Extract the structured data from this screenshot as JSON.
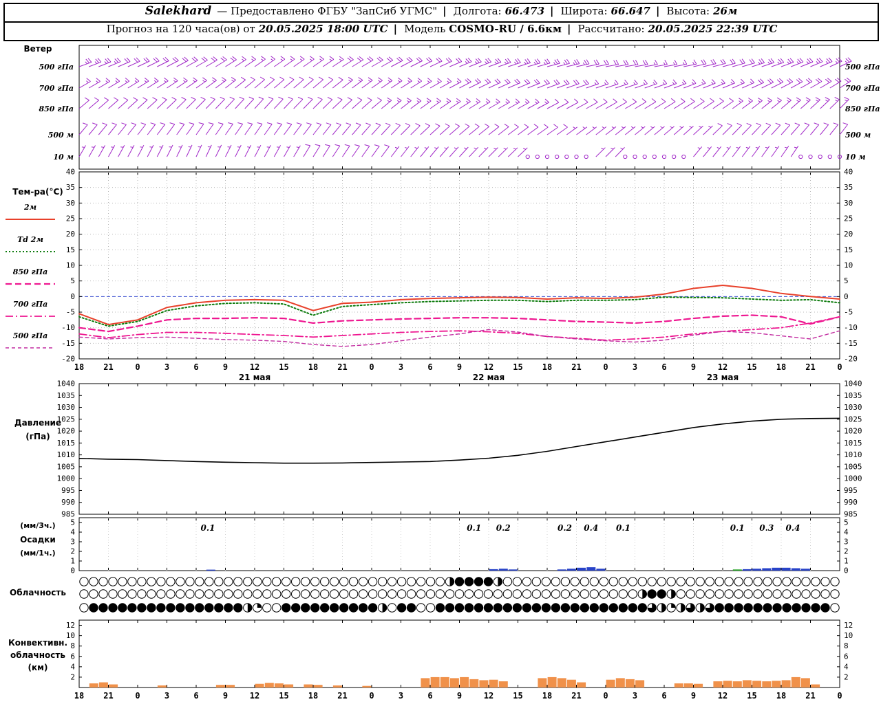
{
  "header": {
    "station": "Salekhard",
    "provider": "— Предоставлено ФГБУ \"ЗапСиб УГМС\"",
    "sep": "|",
    "lon_label": "Долгота:",
    "lon_value": "66.473",
    "lat_label": "Широта:",
    "lat_value": "66.647",
    "alt_label": "Высота:",
    "alt_value": "26м",
    "forecast_label": "Прогноз на 120 часа(ов) от",
    "forecast_time": "20.05.2025 18:00 UTC",
    "model_label": "Модель",
    "model_value": "COSMO-RU / 6.6км",
    "calc_label": "Рассчитано:",
    "calc_time": "20.05.2025 22:39 UTC"
  },
  "labels": {
    "wind_title": "Ветер",
    "temp_title": "Тем-ра(°C)",
    "pressure_title": "Давление",
    "pressure_unit": "(гПа)",
    "precip_unit_3h": "(мм/3ч.)",
    "precip_title": "Осадки",
    "precip_unit_1h": "(мм/1ч.)",
    "cloud_title": "Облачность",
    "conv_title_1": "Конвективн.",
    "conv_title_2": "облачность",
    "conv_title_3": "(км)"
  },
  "axis": {
    "hour_ticks": [
      "18",
      "21",
      "0",
      "3",
      "6",
      "9",
      "12",
      "15",
      "18",
      "21",
      "0",
      "3",
      "6",
      "9",
      "12",
      "15",
      "18",
      "21",
      "0",
      "3",
      "6",
      "9",
      "12",
      "15",
      "18",
      "21",
      "0"
    ],
    "date_labels": [
      {
        "label": "21 мая",
        "t": 6
      },
      {
        "label": "22 мая",
        "t": 14
      },
      {
        "label": "23 мая",
        "t": 22
      }
    ]
  },
  "chart_data": [
    {
      "type": "wind-barbs",
      "title": "Ветер",
      "color": "#a128c8",
      "levels": [
        "500 гПа",
        "700 гПа",
        "850 гПа",
        "500 м",
        "10 м"
      ],
      "keyframe_hours": [
        0,
        6,
        12,
        18,
        24,
        30,
        36,
        42,
        48,
        54,
        60,
        66,
        72,
        78
      ],
      "series": [
        {
          "level": "500 гПа",
          "dir": [
            70,
            65,
            60,
            55,
            55,
            60,
            65,
            70,
            75,
            80,
            80,
            75,
            70,
            65
          ],
          "spd": [
            25,
            20,
            20,
            15,
            15,
            20,
            20,
            25,
            25,
            20,
            15,
            20,
            25,
            25
          ]
        },
        {
          "level": "700 гПа",
          "dir": [
            60,
            58,
            55,
            50,
            50,
            55,
            60,
            65,
            70,
            72,
            70,
            68,
            62,
            58
          ],
          "spd": [
            15,
            15,
            15,
            10,
            10,
            15,
            15,
            20,
            20,
            15,
            15,
            15,
            20,
            20
          ]
        },
        {
          "level": "850 гПа",
          "dir": [
            50,
            48,
            45,
            42,
            45,
            50,
            55,
            60,
            62,
            60,
            58,
            55,
            50,
            45
          ],
          "spd": [
            10,
            10,
            10,
            10,
            10,
            12,
            15,
            15,
            12,
            10,
            10,
            12,
            15,
            15
          ]
        },
        {
          "level": "500 м",
          "dir": [
            40,
            38,
            35,
            35,
            38,
            42,
            48,
            52,
            55,
            52,
            50,
            45,
            42,
            38
          ],
          "spd": [
            10,
            8,
            8,
            8,
            10,
            10,
            10,
            10,
            8,
            5,
            5,
            8,
            10,
            8
          ]
        },
        {
          "level": "10 м",
          "dir": [
            30,
            28,
            25,
            28,
            32,
            36,
            40,
            45,
            48,
            45,
            42,
            38,
            35,
            30
          ],
          "spd": [
            5,
            6,
            5,
            5,
            8,
            8,
            6,
            4,
            1,
            3,
            1,
            4,
            3,
            1
          ]
        }
      ]
    },
    {
      "type": "line",
      "title": "Тем-ра(°C)",
      "ylim": [
        -20,
        40
      ],
      "ytick_step": 5,
      "zero_line_color": "#3b4fd0",
      "series": [
        {
          "name": "2м",
          "color": "#e8402a",
          "style": "solid",
          "width": 2,
          "values": [
            -5.5,
            -9,
            -7.5,
            -3.5,
            -2,
            -1.2,
            -1,
            -1.2,
            -4.5,
            -2.2,
            -1.8,
            -1,
            -0.6,
            -0.4,
            -0.2,
            -0.3,
            -0.8,
            -0.4,
            -0.6,
            -0.2,
            0.8,
            2.6,
            3.6,
            2.6,
            1,
            0,
            -0.8
          ]
        },
        {
          "name": "Td 2м",
          "color": "#0b7a0b",
          "style": "dotted",
          "width": 2,
          "values": [
            -6.5,
            -9.5,
            -8,
            -4.5,
            -3,
            -2.2,
            -2,
            -2.4,
            -6,
            -3.2,
            -2.6,
            -2,
            -1.6,
            -1.4,
            -1.2,
            -1.2,
            -1.6,
            -1.2,
            -1.2,
            -1,
            -0.2,
            -0.3,
            -0.4,
            -0.8,
            -1.2,
            -1,
            -2
          ]
        },
        {
          "name": "850 гПа",
          "color": "#ee1690",
          "style": "dashed",
          "width": 2.2,
          "values": [
            -10,
            -11.2,
            -9.5,
            -7.5,
            -7,
            -7,
            -6.8,
            -7,
            -8.5,
            -7.8,
            -7.5,
            -7.2,
            -7,
            -6.8,
            -6.8,
            -7,
            -7.5,
            -8,
            -8.2,
            -8.5,
            -8,
            -7,
            -6.3,
            -6,
            -6.5,
            -8.8,
            -6.5
          ]
        },
        {
          "name": "700 гПа",
          "color": "#ee1690",
          "style": "dashdot",
          "width": 1.8,
          "values": [
            -12,
            -13.2,
            -12.2,
            -11.5,
            -11.5,
            -11.8,
            -12.2,
            -12.5,
            -13,
            -12.5,
            -12,
            -11.5,
            -11.2,
            -11,
            -11.3,
            -11.8,
            -12.8,
            -13.4,
            -14,
            -13.6,
            -13,
            -12,
            -11.2,
            -10.6,
            -10,
            -8.5,
            -6.5
          ]
        },
        {
          "name": "500 гПа",
          "color": "#c22ba0",
          "style": "dashed-thin",
          "width": 1.4,
          "values": [
            -13,
            -13.6,
            -13.2,
            -13,
            -13.4,
            -13.8,
            -14,
            -14.4,
            -15.4,
            -16,
            -15.4,
            -14.2,
            -13,
            -12,
            -10.6,
            -11.4,
            -12.8,
            -13.6,
            -14.2,
            -14.6,
            -14,
            -12.4,
            -11.2,
            -11.6,
            -12.6,
            -13.6,
            -11
          ]
        }
      ]
    },
    {
      "type": "line",
      "title": "Давление (гПа)",
      "ylim": [
        985,
        1040
      ],
      "ytick_step": 5,
      "series": [
        {
          "name": "Давление",
          "color": "#000000",
          "style": "solid",
          "width": 1.6,
          "values": [
            1008.5,
            1008.2,
            1008,
            1007.6,
            1007.2,
            1006.9,
            1006.7,
            1006.5,
            1006.5,
            1006.6,
            1006.8,
            1007,
            1007.2,
            1007.8,
            1008.6,
            1009.8,
            1011.5,
            1013.5,
            1015.5,
            1017.5,
            1019.5,
            1021.5,
            1023,
            1024.2,
            1025,
            1025.3,
            1025.4
          ]
        }
      ]
    },
    {
      "type": "bar",
      "title": "Осадки (мм/3ч., мм/1ч.)",
      "ylim": [
        0,
        5.5
      ],
      "yticks": [
        0,
        1,
        2,
        3,
        4,
        5
      ],
      "colors": {
        "b": "#2843c8",
        "g": "#27a427"
      },
      "bars": [
        [
          13,
          0.1,
          "b"
        ],
        [
          42,
          0.15,
          "b"
        ],
        [
          43,
          0.2,
          "b"
        ],
        [
          44,
          0.12,
          "b"
        ],
        [
          49,
          0.12,
          "b"
        ],
        [
          50,
          0.2,
          "b"
        ],
        [
          51,
          0.3,
          "b"
        ],
        [
          52,
          0.35,
          "b"
        ],
        [
          53,
          0.2,
          "b"
        ],
        [
          67,
          0.12,
          "g"
        ],
        [
          68,
          0.15,
          "b"
        ],
        [
          69,
          0.2,
          "b"
        ],
        [
          70,
          0.25,
          "b"
        ],
        [
          71,
          0.3,
          "b"
        ],
        [
          72,
          0.3,
          "b"
        ],
        [
          73,
          0.25,
          "b"
        ],
        [
          74,
          0.2,
          "b"
        ]
      ],
      "annotations": [
        [
          4.4,
          "0.1"
        ],
        [
          13.5,
          "0.1"
        ],
        [
          14.5,
          "0.2"
        ],
        [
          16.6,
          "0.2"
        ],
        [
          17.5,
          "0.4"
        ],
        [
          18.6,
          "0.1"
        ],
        [
          22.5,
          "0.1"
        ],
        [
          23.5,
          "0.3"
        ],
        [
          24.4,
          "0.4"
        ]
      ]
    },
    {
      "type": "cloud-symbols",
      "title": "Облачность",
      "fill_scale": "quarters 0-4",
      "fills": [
        "00000000000000000000000000000000000000244442000000000000000000000000000000000000000",
        "00000000000000000000000000000000000000000000000000000000002442000000000000000000",
        "0444444444444444421004444444444204400444444444444444444444432123234444444444440"
      ]
    },
    {
      "type": "bar",
      "title": "Конвективная облачность (км)",
      "ylim": [
        0,
        13
      ],
      "yticks": [
        2,
        4,
        6,
        8,
        10,
        12
      ],
      "color": "#f0914a",
      "bars": [
        [
          1,
          0.8
        ],
        [
          2,
          1
        ],
        [
          3,
          0.6
        ],
        [
          8,
          0.4
        ],
        [
          14,
          0.5
        ],
        [
          15,
          0.5
        ],
        [
          18,
          0.7
        ],
        [
          19,
          0.9
        ],
        [
          20,
          0.8
        ],
        [
          21,
          0.6
        ],
        [
          23,
          0.6
        ],
        [
          24,
          0.5
        ],
        [
          26,
          0.4
        ],
        [
          29,
          0.3
        ],
        [
          35,
          1.8
        ],
        [
          36,
          2
        ],
        [
          37,
          2
        ],
        [
          38,
          1.8
        ],
        [
          39,
          2
        ],
        [
          40,
          1.6
        ],
        [
          41,
          1.4
        ],
        [
          42,
          1.5
        ],
        [
          43,
          1.2
        ],
        [
          47,
          1.8
        ],
        [
          48,
          2
        ],
        [
          49,
          1.8
        ],
        [
          50,
          1.5
        ],
        [
          51,
          1
        ],
        [
          54,
          1.5
        ],
        [
          55,
          1.8
        ],
        [
          56,
          1.6
        ],
        [
          57,
          1.4
        ],
        [
          61,
          0.8
        ],
        [
          62,
          0.8
        ],
        [
          63,
          0.7
        ],
        [
          65,
          1.2
        ],
        [
          66,
          1.3
        ],
        [
          67,
          1.2
        ],
        [
          68,
          1.4
        ],
        [
          69,
          1.3
        ],
        [
          70,
          1.2
        ],
        [
          71,
          1.3
        ],
        [
          72,
          1.4
        ],
        [
          73,
          2
        ],
        [
          74,
          1.8
        ],
        [
          75,
          0.6
        ]
      ]
    }
  ]
}
